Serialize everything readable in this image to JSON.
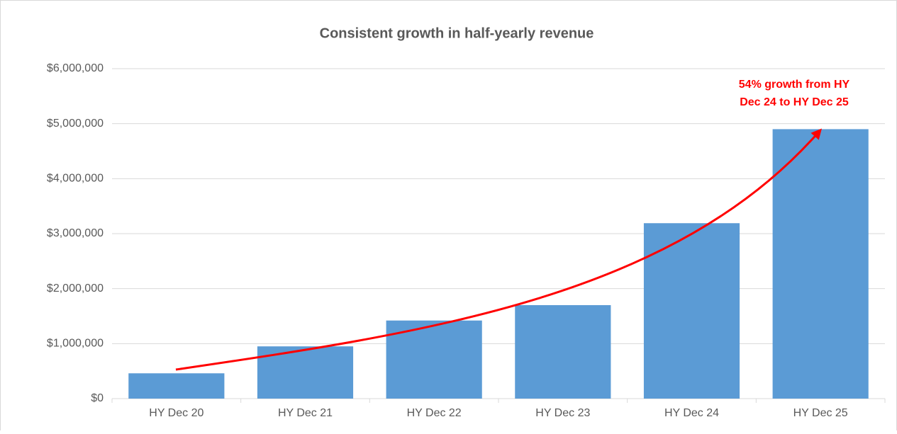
{
  "chart_data": {
    "type": "bar",
    "title": "Consistent growth in half-yearly revenue",
    "categories": [
      "HY Dec 20",
      "HY Dec 21",
      "HY Dec 22",
      "HY Dec 23",
      "HY Dec 24",
      "HY Dec 25"
    ],
    "values": [
      460000,
      950000,
      1420000,
      1700000,
      3190000,
      4900000
    ],
    "color": "#5b9bd5",
    "ylim": [
      0,
      6000000
    ],
    "yticks": [
      {
        "value": 0,
        "label": "$0"
      },
      {
        "value": 1000000,
        "label": "$1,000,000"
      },
      {
        "value": 2000000,
        "label": "$2,000,000"
      },
      {
        "value": 3000000,
        "label": "$3,000,000"
      },
      {
        "value": 4000000,
        "label": "$4,000,000"
      },
      {
        "value": 5000000,
        "label": "$5,000,000"
      },
      {
        "value": 6000000,
        "label": "$6,000,000"
      }
    ],
    "grid": true,
    "annotation": [
      "54% growth from HY",
      "Dec 24 to HY Dec 25"
    ],
    "annotation_color": "#ff0000"
  }
}
